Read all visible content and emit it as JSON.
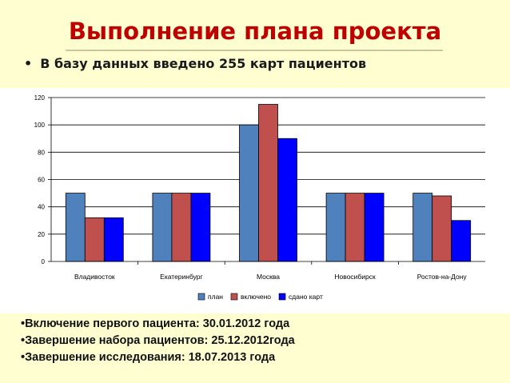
{
  "header": {
    "title": "Выполнение плана проекта",
    "bullet_marker": "•",
    "bullet": "В базу данных введено 255 карт пациентов"
  },
  "chart_data": {
    "type": "bar",
    "categories": [
      "Владивосток",
      "Екатеринбург",
      "Москва",
      "Новосибирск",
      "Ростов-на-Дону"
    ],
    "series": [
      {
        "name": "план",
        "values": [
          50,
          50,
          100,
          50,
          50
        ],
        "color": "#4f81bd"
      },
      {
        "name": "включено",
        "values": [
          32,
          50,
          115,
          50,
          48
        ],
        "color": "#c0504d"
      },
      {
        "name": "сдано карт",
        "values": [
          32,
          50,
          90,
          50,
          30
        ],
        "color": "#0000ff"
      }
    ],
    "ylim": [
      0,
      120
    ],
    "yticks": [
      0,
      20,
      40,
      60,
      80,
      100,
      120
    ],
    "grid": true,
    "legend": "bottom"
  },
  "notes": [
    "•Включение первого пациента: 30.01.2012 года",
    "•Завершение набора пациентов: 25.12.2012года",
    "•Завершение исследования: 18.07.2013 года"
  ]
}
